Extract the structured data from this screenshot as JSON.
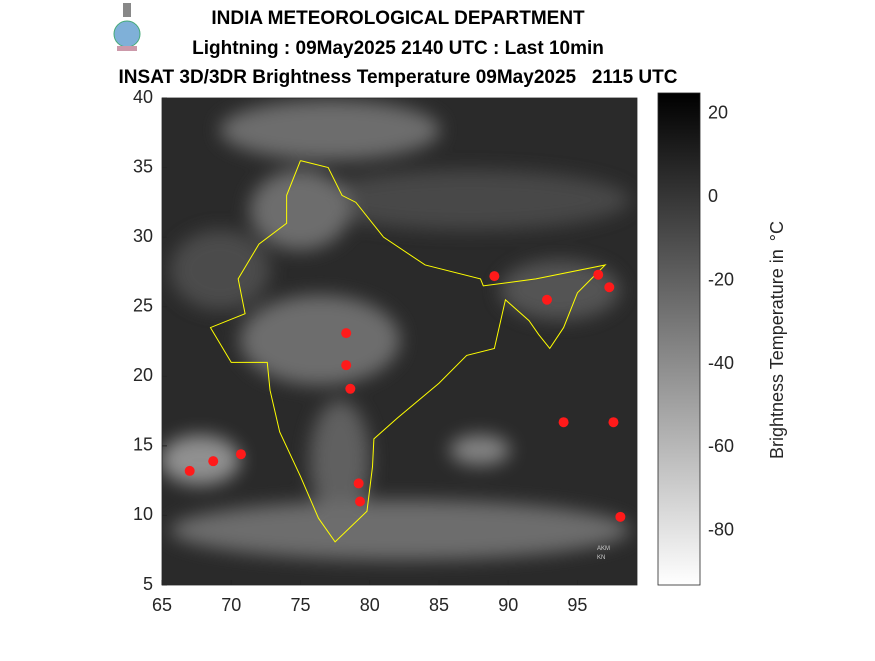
{
  "header": {
    "title": "INDIA METEOROLOGICAL DEPARTMENT",
    "subtitle": "Lightning : 09May2025 2140 UTC : Last 10min",
    "product": "INSAT 3D/3DR Brightness Temperature 09May2025   2115 UTC"
  },
  "map": {
    "xlim": [
      65,
      99.3
    ],
    "ylim": [
      5,
      40
    ],
    "xticks": [
      65,
      70,
      75,
      80,
      85,
      90,
      95
    ],
    "yticks": [
      5,
      10,
      15,
      20,
      25,
      30,
      35,
      40
    ],
    "lightning": {
      "lon": [
        89,
        92.8,
        96.5,
        97.3,
        78.3,
        78.3,
        78.6,
        67,
        68.7,
        70.7,
        79.2,
        79.3,
        94,
        97.6,
        98.1
      ],
      "lat": [
        27.2,
        25.5,
        27.3,
        26.4,
        23.1,
        20.8,
        19.1,
        13.2,
        13.9,
        14.4,
        12.3,
        11,
        16.7,
        16.7,
        9.9
      ]
    },
    "annotation": [
      "AKM",
      "KN"
    ]
  },
  "colorbar": {
    "label": "Brightness Temperature in",
    "unit": "°C",
    "lim": [
      -93,
      25
    ],
    "ticks": [
      20,
      0,
      -20,
      -40,
      -60,
      -80
    ]
  }
}
